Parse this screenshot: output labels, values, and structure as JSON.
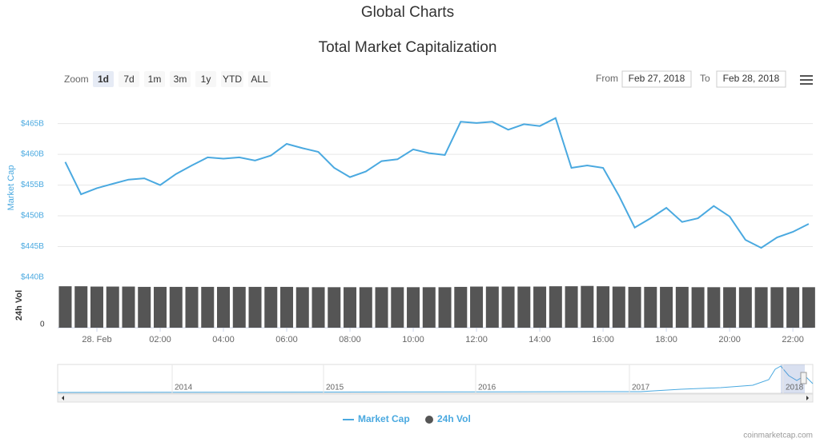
{
  "header": {
    "title": "Global Charts"
  },
  "controls": {
    "zoom_label": "Zoom",
    "buttons": [
      "1d",
      "7d",
      "1m",
      "3m",
      "1y",
      "YTD",
      "ALL"
    ],
    "selected": "1d",
    "from_label": "From",
    "from": "Feb 27, 2018",
    "to_label": "To",
    "to": "Feb 28, 2018"
  },
  "chart_data": {
    "type": "line",
    "title": "Total Market Capitalization",
    "ylabel": "Market Cap",
    "y2label": "24h Vol",
    "x": [
      -1,
      -0.5,
      0,
      0.5,
      1,
      1.5,
      2,
      2.5,
      3,
      3.5,
      4,
      4.5,
      5,
      5.5,
      6,
      6.5,
      7,
      7.5,
      8,
      8.5,
      9,
      9.5,
      10,
      10.5,
      11,
      11.5,
      12,
      12.5,
      13,
      13.5,
      14,
      14.5,
      15,
      15.5,
      16,
      16.5,
      17,
      17.5,
      18,
      18.5,
      19,
      19.5,
      20,
      20.5,
      21,
      21.5,
      22,
      22.5
    ],
    "series": [
      {
        "name": "Market Cap",
        "color": "#4aa9e0",
        "values": [
          458750000000,
          453500000000,
          454500000000,
          455200000000,
          455900000000,
          456100000000,
          455000000000,
          456800000000,
          458200000000,
          459500000000,
          459300000000,
          459500000000,
          459000000000,
          459800000000,
          461700000000,
          461000000000,
          460400000000,
          457800000000,
          456300000000,
          457200000000,
          458900000000,
          459200000000,
          460800000000,
          460200000000,
          459900000000,
          465300000000,
          465100000000,
          465300000000,
          464000000000,
          464900000000,
          464600000000,
          465900000000,
          457800000000,
          458200000000,
          457800000000,
          453300000000,
          448100000000,
          449600000000,
          451300000000,
          449000000000,
          449600000000,
          451600000000,
          449900000000,
          446100000000,
          444800000000,
          446500000000,
          447400000000,
          448700000000
        ]
      },
      {
        "name": "24h Vol",
        "color": "#555555",
        "type": "bar",
        "axis": "y2",
        "values": [
          13200000000,
          13200000000,
          13100000000,
          13100000000,
          13100000000,
          13000000000,
          13000000000,
          13000000000,
          13000000000,
          13000000000,
          13000000000,
          13000000000,
          13000000000,
          13000000000,
          13000000000,
          12900000000,
          12900000000,
          12900000000,
          12900000000,
          12900000000,
          12900000000,
          12900000000,
          12900000000,
          12900000000,
          12900000000,
          13000000000,
          13100000000,
          13100000000,
          13100000000,
          13100000000,
          13100000000,
          13200000000,
          13200000000,
          13300000000,
          13200000000,
          13100000000,
          13000000000,
          13000000000,
          13000000000,
          13000000000,
          12900000000,
          12900000000,
          12900000000,
          12900000000,
          12900000000,
          12900000000,
          12900000000,
          12900000000
        ]
      }
    ],
    "xlim": [
      -1.24,
      22.63
    ],
    "xticks": [
      {
        "value": 0,
        "label": "28. Feb"
      },
      {
        "value": 2,
        "label": "02:00"
      },
      {
        "value": 4,
        "label": "04:00"
      },
      {
        "value": 6,
        "label": "06:00"
      },
      {
        "value": 8,
        "label": "08:00"
      },
      {
        "value": 10,
        "label": "10:00"
      },
      {
        "value": 12,
        "label": "12:00"
      },
      {
        "value": 14,
        "label": "14:00"
      },
      {
        "value": 16,
        "label": "16:00"
      },
      {
        "value": 18,
        "label": "18:00"
      },
      {
        "value": 20,
        "label": "20:00"
      },
      {
        "value": 22,
        "label": "22:00"
      }
    ],
    "ylim": [
      440000000000,
      469500000000
    ],
    "yticks": [
      {
        "value": 440000000000,
        "label": "$440B"
      },
      {
        "value": 445000000000,
        "label": "$445B"
      },
      {
        "value": 450000000000,
        "label": "$450B"
      },
      {
        "value": 455000000000,
        "label": "$455B"
      },
      {
        "value": 460000000000,
        "label": "$460B"
      },
      {
        "value": 465000000000,
        "label": "$465B"
      }
    ],
    "y2lim": [
      0,
      14000000000
    ],
    "y2ticks": [
      0
    ],
    "grid": true
  },
  "navigator": {
    "labels": [
      "2014",
      "2015",
      "2016",
      "2017",
      "2018"
    ]
  },
  "credit": "coinmarketcap.com"
}
